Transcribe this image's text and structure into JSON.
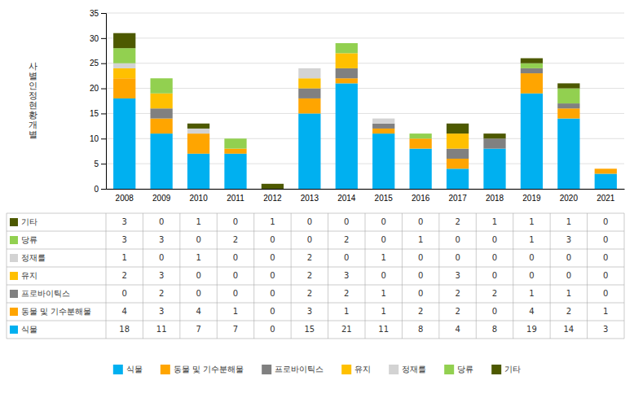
{
  "chart_data": {
    "type": "bar",
    "stacked": true,
    "categories": [
      "2008",
      "2009",
      "2010",
      "2011",
      "2012",
      "2013",
      "2014",
      "2015",
      "2016",
      "2017",
      "2018",
      "2019",
      "2020",
      "2021"
    ],
    "series": [
      {
        "name": "식물",
        "color": "#00B0F0",
        "values": [
          18,
          11,
          7,
          7,
          0,
          15,
          21,
          11,
          8,
          4,
          8,
          19,
          14,
          3
        ]
      },
      {
        "name": "동물 및 기수분해물",
        "color": "#FFA500",
        "values": [
          4,
          3,
          4,
          1,
          0,
          3,
          1,
          1,
          2,
          2,
          0,
          4,
          2,
          1
        ]
      },
      {
        "name": "프로바이틱스",
        "color": "#808080",
        "values": [
          0,
          2,
          0,
          0,
          0,
          2,
          2,
          1,
          0,
          2,
          2,
          1,
          1,
          0
        ]
      },
      {
        "name": "유지",
        "color": "#FFC000",
        "values": [
          2,
          3,
          0,
          0,
          0,
          2,
          3,
          0,
          0,
          3,
          0,
          0,
          0,
          0
        ]
      },
      {
        "name": "정재를",
        "color": "#D3D3D3",
        "values": [
          1,
          0,
          1,
          0,
          0,
          2,
          0,
          1,
          0,
          0,
          0,
          0,
          0,
          0
        ]
      },
      {
        "name": "당류",
        "color": "#92D050",
        "values": [
          3,
          3,
          0,
          2,
          0,
          0,
          2,
          0,
          1,
          0,
          0,
          1,
          3,
          0
        ]
      },
      {
        "name": "기타",
        "color": "#4D5900",
        "values": [
          3,
          0,
          1,
          0,
          1,
          0,
          0,
          0,
          0,
          2,
          1,
          1,
          1,
          0
        ]
      }
    ],
    "y_label": "사\n별\n인\n정\n현\n황\n개\n별",
    "ylim": [
      0,
      35
    ],
    "yticks": [
      0,
      5,
      10,
      15,
      20,
      25,
      30,
      35
    ],
    "grid": true,
    "legend": "bottom"
  }
}
